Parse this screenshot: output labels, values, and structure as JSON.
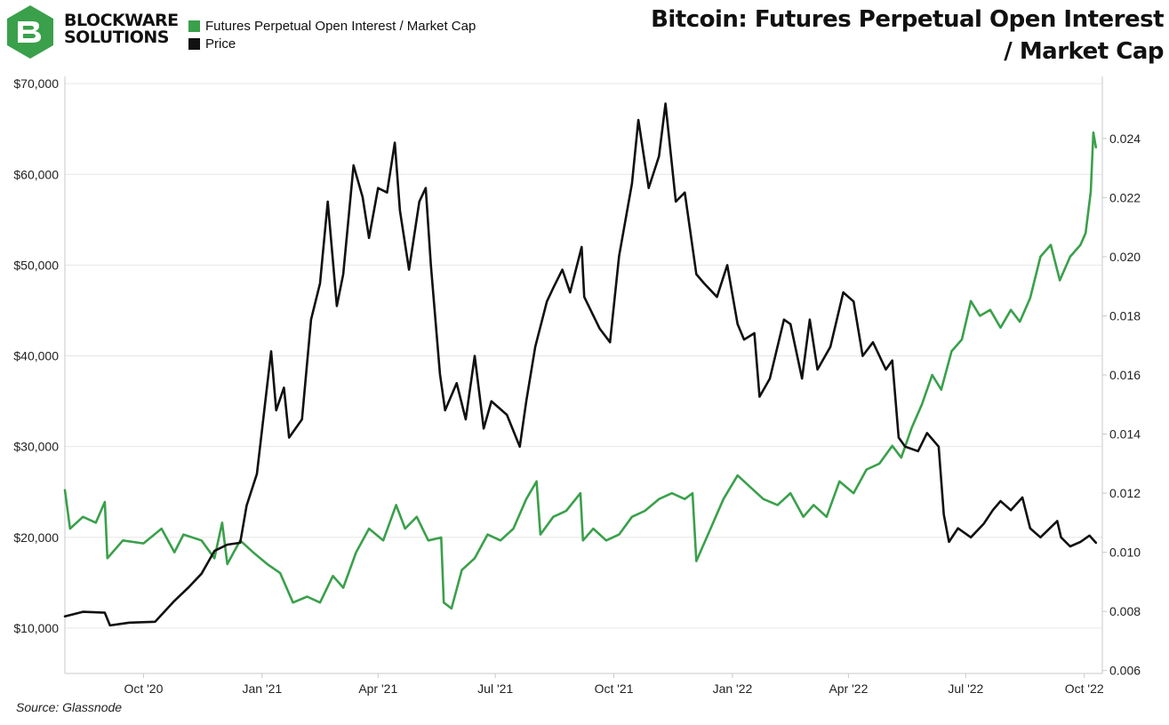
{
  "brand": {
    "line1": "BLOCKWARE",
    "line2": "SOLUTIONS"
  },
  "title": {
    "line1": "Bitcoin: Futures Perpetual Open Interest",
    "line2": "/ Market Cap"
  },
  "source": "Source: Glassnode",
  "colors": {
    "green": "#3aa04b",
    "black": "#111111",
    "grid": "#e6e6e6",
    "axis": "#c8c8c8"
  },
  "chart_data": {
    "type": "line",
    "x_range": [
      "2020-08-01",
      "2022-10-15"
    ],
    "x_tick_labels": [
      {
        "label": "Oct '20",
        "date": "2020-10-01"
      },
      {
        "label": "Jan '21",
        "date": "2021-01-01"
      },
      {
        "label": "Apr '21",
        "date": "2021-04-01"
      },
      {
        "label": "Jul '21",
        "date": "2021-07-01"
      },
      {
        "label": "Oct '21",
        "date": "2021-10-01"
      },
      {
        "label": "Jan '22",
        "date": "2022-01-01"
      },
      {
        "label": "Apr '22",
        "date": "2022-04-01"
      },
      {
        "label": "Jul '22",
        "date": "2022-07-01"
      },
      {
        "label": "Oct '22",
        "date": "2022-10-01"
      }
    ],
    "y_left": {
      "min": 5000,
      "max": 70800,
      "ticks": [
        10000,
        20000,
        30000,
        40000,
        50000,
        60000,
        70000
      ],
      "tick_labels": [
        "$10,000",
        "$20,000",
        "$30,000",
        "$40,000",
        "$50,000",
        "$60,000",
        "$70,000"
      ]
    },
    "y_right": {
      "min": 0.0059,
      "max": 0.0261,
      "ticks": [
        0.006,
        0.008,
        0.01,
        0.012,
        0.014,
        0.016,
        0.018,
        0.02,
        0.022,
        0.024
      ],
      "tick_labels": [
        "0.006",
        "0.008",
        "0.010",
        "0.012",
        "0.014",
        "0.016",
        "0.018",
        "0.020",
        "0.022",
        "0.024"
      ]
    },
    "series": [
      {
        "name": "Futures Perpetual Open Interest / Market Cap",
        "color": "#3aa04b",
        "axis": "right",
        "points": [
          [
            "2020-08-01",
            0.0121
          ],
          [
            "2020-08-05",
            0.0108
          ],
          [
            "2020-08-15",
            0.0112
          ],
          [
            "2020-08-25",
            0.011
          ],
          [
            "2020-09-01",
            0.0117
          ],
          [
            "2020-09-03",
            0.0098
          ],
          [
            "2020-09-15",
            0.0104
          ],
          [
            "2020-10-01",
            0.0103
          ],
          [
            "2020-10-15",
            0.0108
          ],
          [
            "2020-10-25",
            0.01
          ],
          [
            "2020-11-01",
            0.0106
          ],
          [
            "2020-11-15",
            0.0104
          ],
          [
            "2020-11-25",
            0.0098
          ],
          [
            "2020-12-01",
            0.011
          ],
          [
            "2020-12-05",
            0.0096
          ],
          [
            "2020-12-15",
            0.0104
          ],
          [
            "2020-12-25",
            0.01
          ],
          [
            "2021-01-05",
            0.0096
          ],
          [
            "2021-01-15",
            0.0093
          ],
          [
            "2021-01-25",
            0.0083
          ],
          [
            "2021-02-05",
            0.0085
          ],
          [
            "2021-02-15",
            0.0083
          ],
          [
            "2021-02-25",
            0.0092
          ],
          [
            "2021-03-05",
            0.0088
          ],
          [
            "2021-03-15",
            0.01
          ],
          [
            "2021-03-25",
            0.0108
          ],
          [
            "2021-04-05",
            0.0104
          ],
          [
            "2021-04-15",
            0.0116
          ],
          [
            "2021-04-22",
            0.0108
          ],
          [
            "2021-05-01",
            0.0112
          ],
          [
            "2021-05-10",
            0.0104
          ],
          [
            "2021-05-20",
            0.0105
          ],
          [
            "2021-05-22",
            0.0083
          ],
          [
            "2021-05-28",
            0.0081
          ],
          [
            "2021-06-05",
            0.0094
          ],
          [
            "2021-06-15",
            0.0098
          ],
          [
            "2021-06-25",
            0.0106
          ],
          [
            "2021-07-05",
            0.0104
          ],
          [
            "2021-07-15",
            0.0108
          ],
          [
            "2021-07-25",
            0.0118
          ],
          [
            "2021-08-02",
            0.0124
          ],
          [
            "2021-08-05",
            0.0106
          ],
          [
            "2021-08-15",
            0.0112
          ],
          [
            "2021-08-25",
            0.0114
          ],
          [
            "2021-09-05",
            0.012
          ],
          [
            "2021-09-07",
            0.0104
          ],
          [
            "2021-09-15",
            0.0108
          ],
          [
            "2021-09-25",
            0.0104
          ],
          [
            "2021-10-05",
            0.0106
          ],
          [
            "2021-10-15",
            0.0112
          ],
          [
            "2021-10-25",
            0.0114
          ],
          [
            "2021-11-05",
            0.0118
          ],
          [
            "2021-11-15",
            0.012
          ],
          [
            "2021-11-25",
            0.0118
          ],
          [
            "2021-12-01",
            0.012
          ],
          [
            "2021-12-04",
            0.0097
          ],
          [
            "2021-12-15",
            0.0108
          ],
          [
            "2021-12-25",
            0.0118
          ],
          [
            "2022-01-05",
            0.0126
          ],
          [
            "2022-01-15",
            0.0122
          ],
          [
            "2022-01-25",
            0.0118
          ],
          [
            "2022-02-05",
            0.0116
          ],
          [
            "2022-02-15",
            0.012
          ],
          [
            "2022-02-25",
            0.0112
          ],
          [
            "2022-03-05",
            0.0116
          ],
          [
            "2022-03-15",
            0.0112
          ],
          [
            "2022-03-25",
            0.0124
          ],
          [
            "2022-04-05",
            0.012
          ],
          [
            "2022-04-15",
            0.0128
          ],
          [
            "2022-04-25",
            0.013
          ],
          [
            "2022-05-05",
            0.0136
          ],
          [
            "2022-05-12",
            0.0132
          ],
          [
            "2022-05-20",
            0.0142
          ],
          [
            "2022-05-28",
            0.015
          ],
          [
            "2022-06-05",
            0.016
          ],
          [
            "2022-06-12",
            0.0155
          ],
          [
            "2022-06-20",
            0.0168
          ],
          [
            "2022-06-28",
            0.0172
          ],
          [
            "2022-07-05",
            0.0185
          ],
          [
            "2022-07-12",
            0.018
          ],
          [
            "2022-07-20",
            0.0182
          ],
          [
            "2022-07-28",
            0.0176
          ],
          [
            "2022-08-05",
            0.0182
          ],
          [
            "2022-08-12",
            0.0178
          ],
          [
            "2022-08-20",
            0.0186
          ],
          [
            "2022-08-28",
            0.02
          ],
          [
            "2022-09-05",
            0.0204
          ],
          [
            "2022-09-12",
            0.0192
          ],
          [
            "2022-09-20",
            0.02
          ],
          [
            "2022-09-28",
            0.0204
          ],
          [
            "2022-10-02",
            0.0208
          ],
          [
            "2022-10-06",
            0.0222
          ],
          [
            "2022-10-08",
            0.0242
          ],
          [
            "2022-10-10",
            0.0237
          ]
        ]
      },
      {
        "name": "Price",
        "color": "#111111",
        "axis": "left",
        "points": [
          [
            "2020-08-01",
            11300
          ],
          [
            "2020-08-15",
            11800
          ],
          [
            "2020-09-01",
            11700
          ],
          [
            "2020-09-05",
            10300
          ],
          [
            "2020-09-20",
            10600
          ],
          [
            "2020-10-10",
            10700
          ],
          [
            "2020-10-25",
            13000
          ],
          [
            "2020-11-05",
            14500
          ],
          [
            "2020-11-15",
            16000
          ],
          [
            "2020-11-25",
            18500
          ],
          [
            "2020-12-05",
            19200
          ],
          [
            "2020-12-15",
            19400
          ],
          [
            "2020-12-20",
            23500
          ],
          [
            "2020-12-28",
            27000
          ],
          [
            "2021-01-08",
            40500
          ],
          [
            "2021-01-12",
            34000
          ],
          [
            "2021-01-18",
            36500
          ],
          [
            "2021-01-22",
            31000
          ],
          [
            "2021-02-01",
            33000
          ],
          [
            "2021-02-08",
            44000
          ],
          [
            "2021-02-15",
            48000
          ],
          [
            "2021-02-21",
            57000
          ],
          [
            "2021-02-28",
            45500
          ],
          [
            "2021-03-05",
            49000
          ],
          [
            "2021-03-13",
            61000
          ],
          [
            "2021-03-20",
            57500
          ],
          [
            "2021-03-25",
            53000
          ],
          [
            "2021-04-01",
            58500
          ],
          [
            "2021-04-08",
            58000
          ],
          [
            "2021-04-14",
            63500
          ],
          [
            "2021-04-18",
            56000
          ],
          [
            "2021-04-25",
            49500
          ],
          [
            "2021-05-03",
            57000
          ],
          [
            "2021-05-08",
            58500
          ],
          [
            "2021-05-12",
            50000
          ],
          [
            "2021-05-19",
            38000
          ],
          [
            "2021-05-23",
            34000
          ],
          [
            "2021-06-01",
            37000
          ],
          [
            "2021-06-08",
            33000
          ],
          [
            "2021-06-15",
            40000
          ],
          [
            "2021-06-22",
            32000
          ],
          [
            "2021-06-28",
            35000
          ],
          [
            "2021-07-10",
            33500
          ],
          [
            "2021-07-20",
            30000
          ],
          [
            "2021-07-25",
            35000
          ],
          [
            "2021-08-01",
            41000
          ],
          [
            "2021-08-10",
            46000
          ],
          [
            "2021-08-15",
            47500
          ],
          [
            "2021-08-22",
            49500
          ],
          [
            "2021-08-28",
            47000
          ],
          [
            "2021-09-06",
            52000
          ],
          [
            "2021-09-08",
            46500
          ],
          [
            "2021-09-20",
            43000
          ],
          [
            "2021-09-28",
            41500
          ],
          [
            "2021-10-05",
            51000
          ],
          [
            "2021-10-15",
            59000
          ],
          [
            "2021-10-20",
            66000
          ],
          [
            "2021-10-28",
            58500
          ],
          [
            "2021-11-05",
            62000
          ],
          [
            "2021-11-10",
            67800
          ],
          [
            "2021-11-18",
            57000
          ],
          [
            "2021-11-25",
            58000
          ],
          [
            "2021-12-04",
            49000
          ],
          [
            "2021-12-10",
            48000
          ],
          [
            "2021-12-20",
            46500
          ],
          [
            "2021-12-28",
            50000
          ],
          [
            "2022-01-05",
            43500
          ],
          [
            "2022-01-10",
            41800
          ],
          [
            "2022-01-18",
            42500
          ],
          [
            "2022-01-22",
            35500
          ],
          [
            "2022-01-30",
            37500
          ],
          [
            "2022-02-10",
            44000
          ],
          [
            "2022-02-15",
            43500
          ],
          [
            "2022-02-24",
            37500
          ],
          [
            "2022-03-02",
            44000
          ],
          [
            "2022-03-08",
            38500
          ],
          [
            "2022-03-18",
            41000
          ],
          [
            "2022-03-28",
            47000
          ],
          [
            "2022-04-05",
            46000
          ],
          [
            "2022-04-12",
            40000
          ],
          [
            "2022-04-20",
            41500
          ],
          [
            "2022-04-30",
            38500
          ],
          [
            "2022-05-05",
            39500
          ],
          [
            "2022-05-10",
            31000
          ],
          [
            "2022-05-15",
            30000
          ],
          [
            "2022-05-25",
            29500
          ],
          [
            "2022-06-01",
            31500
          ],
          [
            "2022-06-10",
            30000
          ],
          [
            "2022-06-14",
            22500
          ],
          [
            "2022-06-18",
            19500
          ],
          [
            "2022-06-25",
            21000
          ],
          [
            "2022-07-05",
            20000
          ],
          [
            "2022-07-15",
            21500
          ],
          [
            "2022-07-22",
            23000
          ],
          [
            "2022-07-28",
            24000
          ],
          [
            "2022-08-05",
            23000
          ],
          [
            "2022-08-14",
            24400
          ],
          [
            "2022-08-20",
            21000
          ],
          [
            "2022-08-28",
            20000
          ],
          [
            "2022-09-10",
            21800
          ],
          [
            "2022-09-13",
            20000
          ],
          [
            "2022-09-20",
            19000
          ],
          [
            "2022-09-28",
            19500
          ],
          [
            "2022-10-05",
            20200
          ],
          [
            "2022-10-10",
            19400
          ]
        ]
      }
    ]
  }
}
